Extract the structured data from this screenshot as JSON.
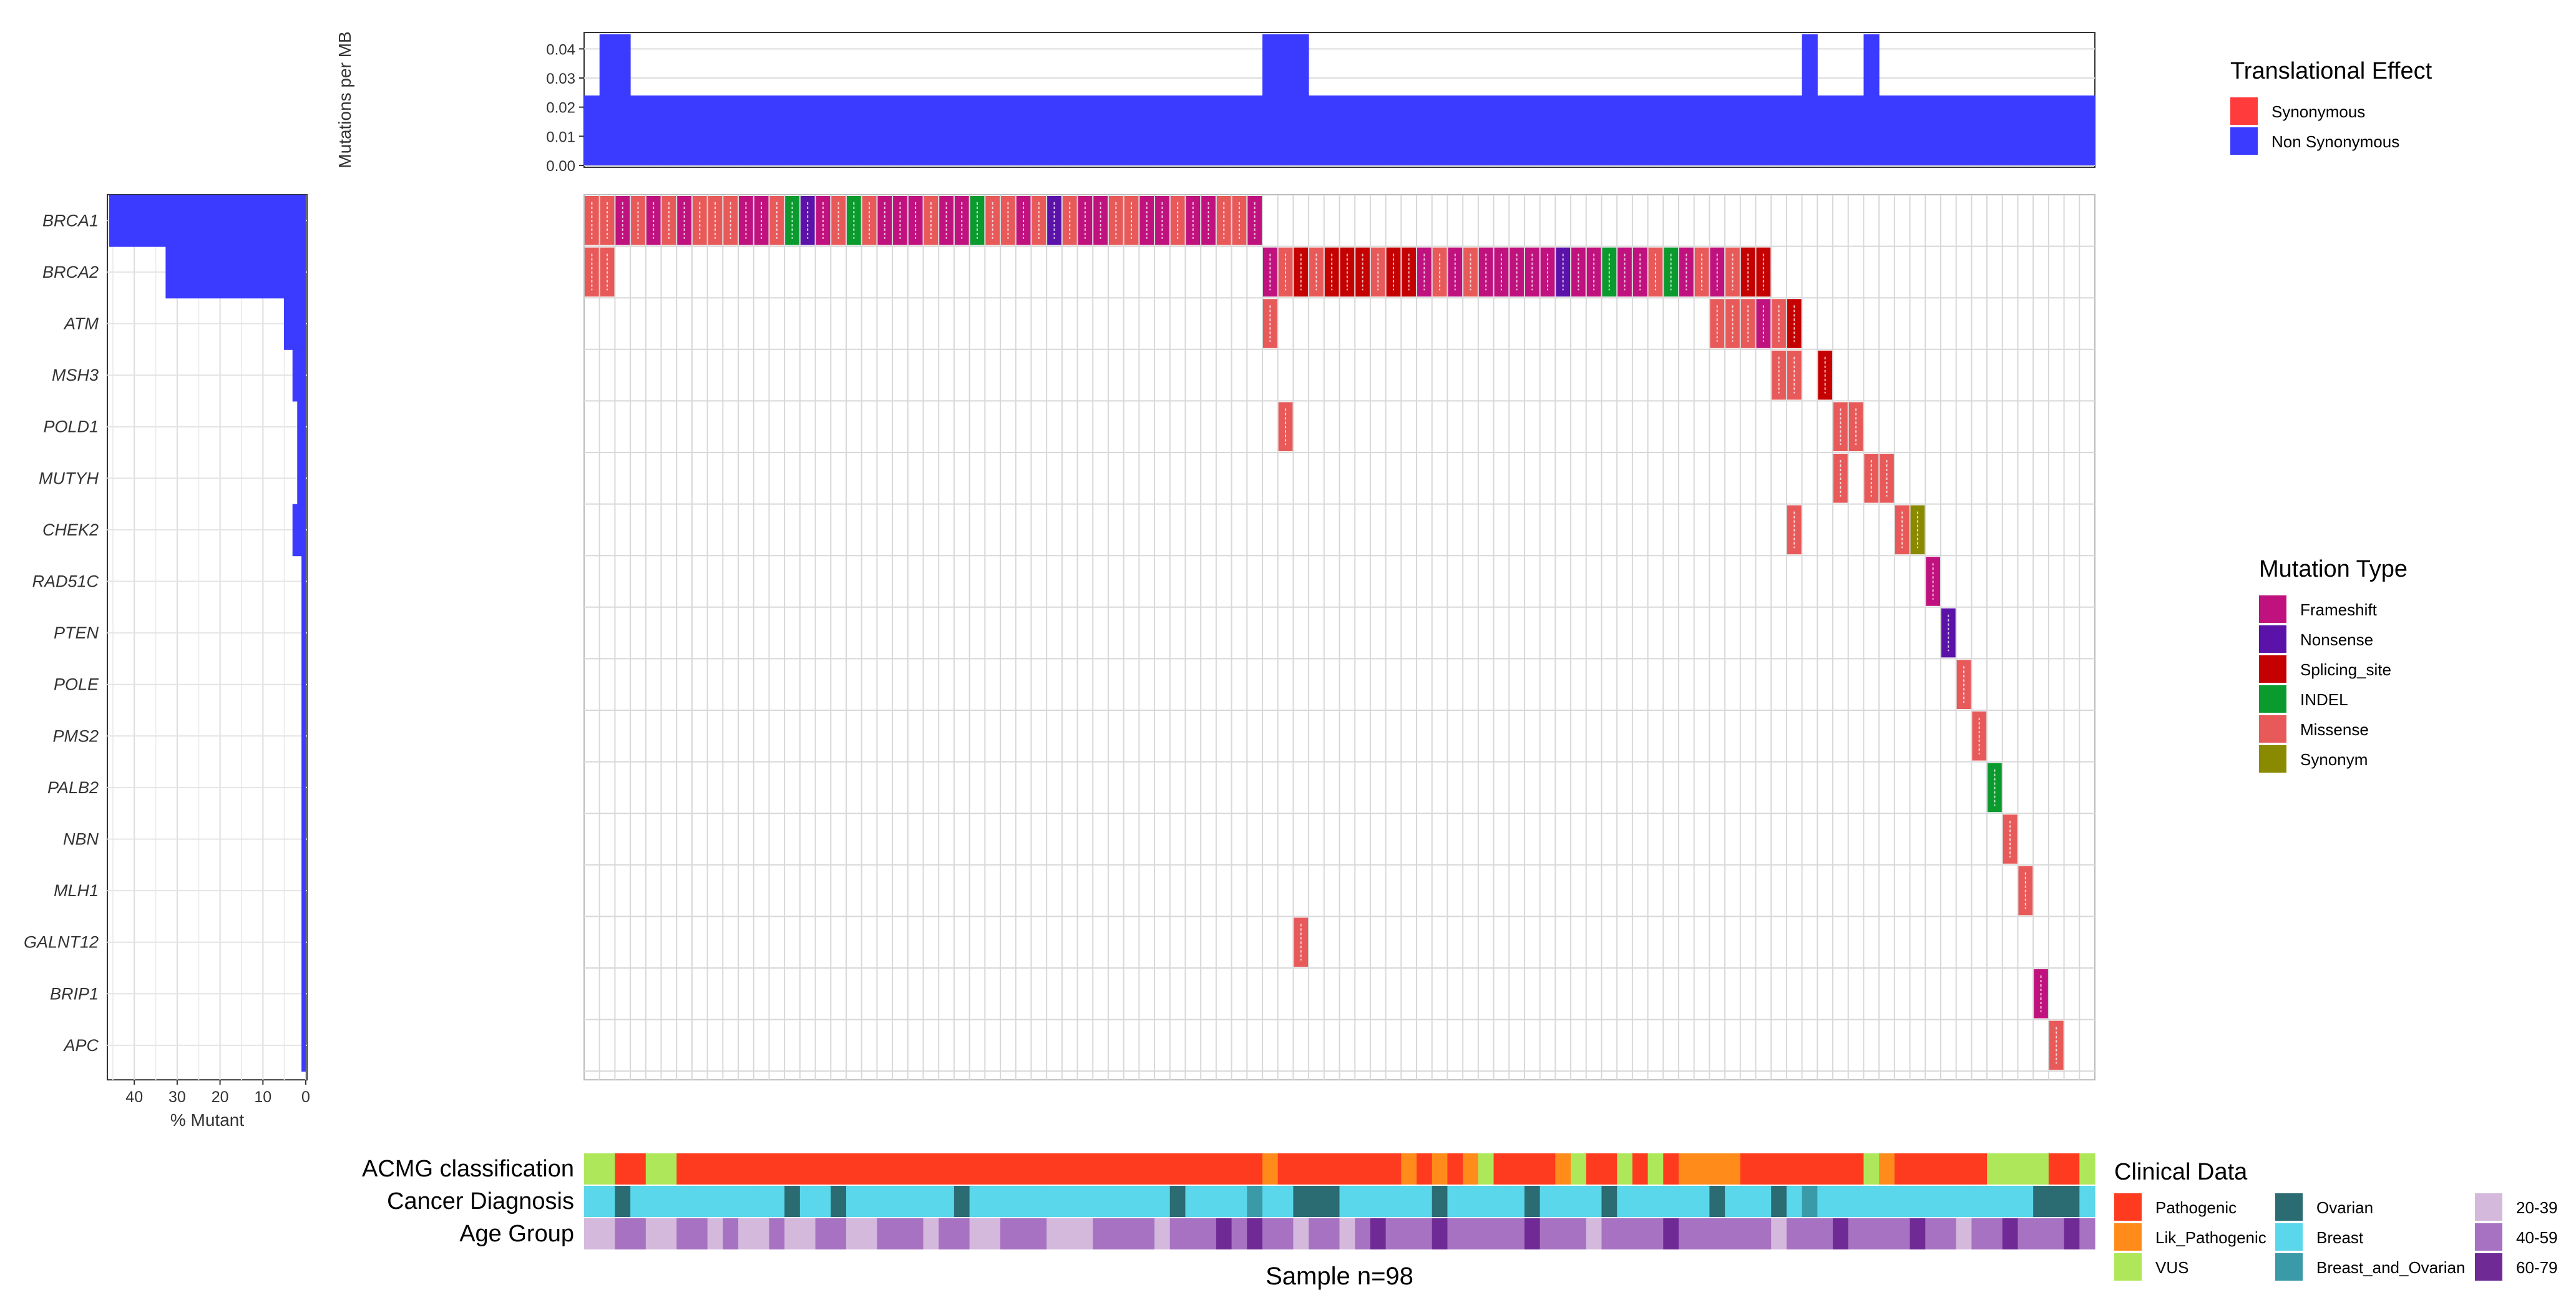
{
  "genes": [
    "BRCA1",
    "BRCA2",
    "ATM",
    "MSH3",
    "POLD1",
    "MUTYH",
    "CHEK2",
    "RAD51C",
    "PTEN",
    "POLE",
    "PMS2",
    "PALB2",
    "NBN",
    "MLH1",
    "GALNT12",
    "BRIP1",
    "APC"
  ],
  "left_bar": {
    "xlabel": "% Mutant",
    "ticks": [
      "40",
      "30",
      "20",
      "10",
      "0"
    ],
    "values": [
      45.9,
      32.7,
      5.1,
      3.1,
      2.0,
      2.0,
      3.1,
      1.0,
      1.0,
      1.0,
      1.0,
      1.0,
      1.0,
      1.0,
      1.0,
      1.0,
      1.0
    ]
  },
  "top_bar": {
    "ylabel": "Mutations per MB",
    "ticks": [
      "0.00",
      "0.01",
      "0.02",
      "0.03",
      "0.04"
    ]
  },
  "matrix": {
    "n_samples": 98,
    "xlabel": "Sample n=98"
  },
  "clinical_tracks": {
    "labels": [
      "ACMG classification",
      "Cancer Diagnosis",
      "Age Group"
    ]
  },
  "legends": {
    "translational": {
      "title": "Translational Effect",
      "items": [
        {
          "label": "Synonymous",
          "color": "#ff3b3b"
        },
        {
          "label": "Non Synonymous",
          "color": "#3b3bff"
        }
      ]
    },
    "mutation": {
      "title": "Mutation Type",
      "items": [
        {
          "label": "Frameshift",
          "color": "#c0127e"
        },
        {
          "label": "Nonsense",
          "color": "#5a12a8"
        },
        {
          "label": "Splicing_site",
          "color": "#c40000"
        },
        {
          "label": "INDEL",
          "color": "#0a9a2e"
        },
        {
          "label": "Missense",
          "color": "#e85a5a"
        },
        {
          "label": "Synonym",
          "color": "#8a8a00"
        }
      ]
    },
    "clinical": {
      "title": "Clinical Data",
      "col1": [
        {
          "label": "Pathogenic",
          "color": "#ff3b1f"
        },
        {
          "label": "Lik_Pathogenic",
          "color": "#ff8c1a"
        },
        {
          "label": "VUS",
          "color": "#aee85a"
        }
      ],
      "col2": [
        {
          "label": "Ovarian",
          "color": "#2b6b72"
        },
        {
          "label": "Breast",
          "color": "#5ad7ea"
        },
        {
          "label": "Breast_and_Ovarian",
          "color": "#3a9aa8"
        }
      ],
      "col3": [
        {
          "label": "20-39",
          "color": "#d4b9dd"
        },
        {
          "label": "40-59",
          "color": "#a872c2"
        },
        {
          "label": "60-79",
          "color": "#6f2a96"
        }
      ]
    }
  },
  "chart_data": {
    "type": "heatmap",
    "title": "",
    "left_bar": {
      "genes": [
        "BRCA1",
        "BRCA2",
        "ATM",
        "MSH3",
        "POLD1",
        "MUTYH",
        "CHEK2",
        "RAD51C",
        "PTEN",
        "POLE",
        "PMS2",
        "PALB2",
        "NBN",
        "MLH1",
        "GALNT12",
        "BRIP1",
        "APC"
      ],
      "percent_mutant": [
        45.9,
        32.7,
        5.1,
        3.1,
        2.0,
        2.0,
        3.1,
        1.0,
        1.0,
        1.0,
        1.0,
        1.0,
        1.0,
        1.0,
        1.0,
        1.0,
        1.0
      ],
      "xlim": [
        0,
        46
      ]
    },
    "top_bar": {
      "ylim": [
        0,
        0.045
      ],
      "baseline": 0.024,
      "peaks_at_samples": [
        1,
        2,
        44,
        45,
        46,
        79,
        83
      ],
      "peak_value": 0.045
    }
  }
}
